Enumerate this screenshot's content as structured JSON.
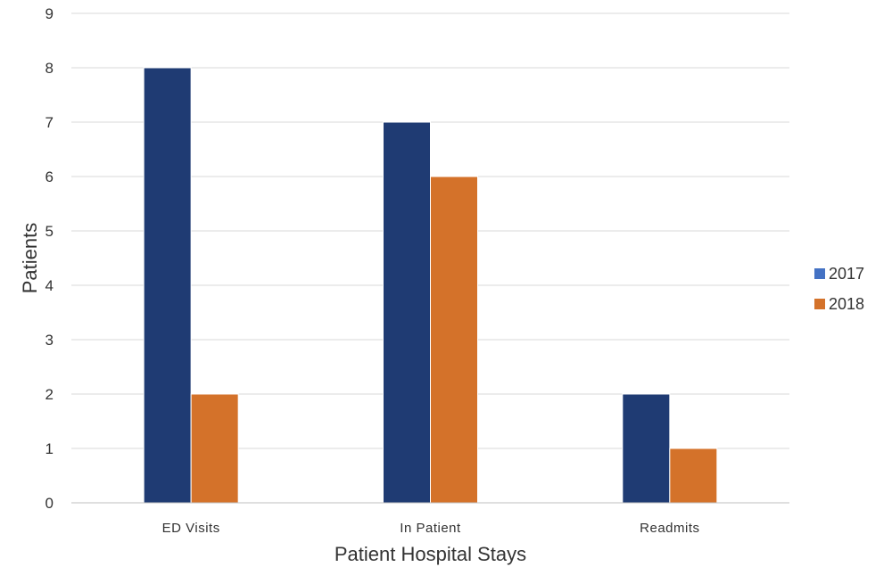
{
  "chart_data": {
    "type": "bar",
    "title": "",
    "xlabel": "Patient Hospital Stays",
    "ylabel": "Patients",
    "categories": [
      "ED Visits",
      "In Patient",
      "Readmits"
    ],
    "series": [
      {
        "name": "2017",
        "values": [
          8,
          7,
          2
        ],
        "color": "#1f3b73",
        "legend_color": "#4472c4"
      },
      {
        "name": "2018",
        "values": [
          2,
          6,
          1
        ],
        "color": "#d4722a",
        "legend_color": "#d4722a"
      }
    ],
    "ylim": [
      0,
      9
    ],
    "yticks": [
      0,
      1,
      2,
      3,
      4,
      5,
      6,
      7,
      8,
      9
    ],
    "grid": true,
    "legend_position": "right"
  }
}
